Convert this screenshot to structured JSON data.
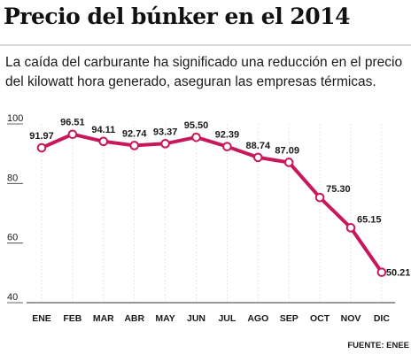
{
  "header": {
    "title": "Precio del búnker en el 2014",
    "subtitle": "La caída del carburante ha significado una reducción en el precio del kilowatt hora generado, aseguran las empresas térmicas."
  },
  "source": "FUENTE: ENEE",
  "colors": {
    "line": "#c8175d",
    "marker_fill": "#ffffff",
    "grid": "#e6e6e6",
    "axis": "#333333",
    "text": "#1a1a1a"
  },
  "chart_data": {
    "type": "line",
    "title": "Precio del búnker en el 2014",
    "categories": [
      "ENE",
      "FEB",
      "MAR",
      "ABR",
      "MAY",
      "JUN",
      "JUL",
      "AGO",
      "SEP",
      "OCT",
      "NOV",
      "DIC"
    ],
    "series": [
      {
        "values": [
          91.97,
          96.51,
          94.11,
          92.74,
          93.37,
          95.5,
          92.39,
          88.74,
          87.09,
          75.3,
          65.15,
          50.21
        ]
      }
    ],
    "value_labels": [
      "91.97",
      "96.51",
      "94.11",
      "92.74",
      "93.37",
      "95.50",
      "92.39",
      "88.74",
      "87.09",
      "75.30",
      "65.15",
      "50.21"
    ],
    "ylim": [
      40,
      100
    ],
    "yticks": [
      40,
      60,
      80,
      100
    ],
    "ytick_labels": [
      "40",
      "60",
      "80",
      "100"
    ],
    "grid": "vertical dashed lines at each month",
    "xlabel": "",
    "ylabel": ""
  }
}
